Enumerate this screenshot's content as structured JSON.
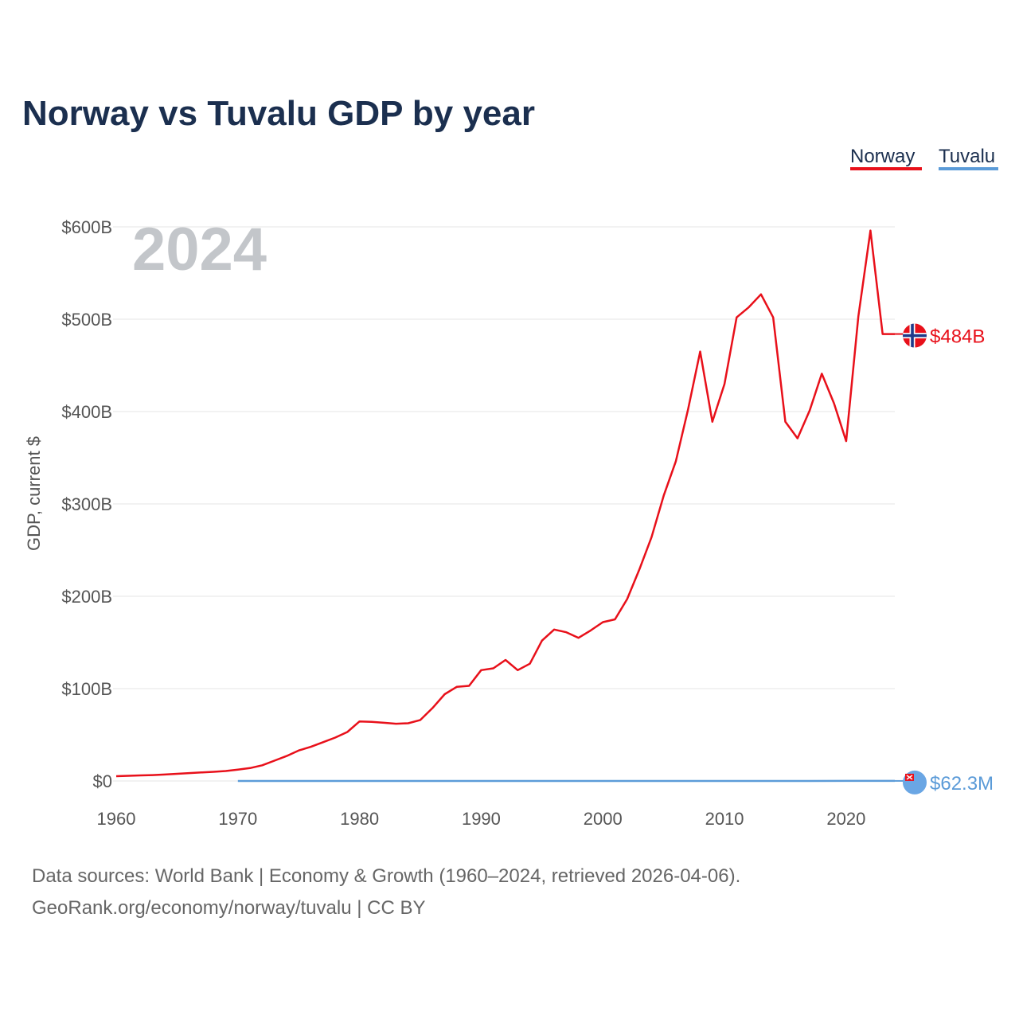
{
  "chart_data": {
    "type": "line",
    "title": "Norway vs Tuvalu GDP by year",
    "ylabel": "GDP, current $",
    "xlabel": "",
    "xlim": [
      1960,
      2024
    ],
    "ylim": [
      0,
      600000000000
    ],
    "current_year": "2024",
    "x_ticks": [
      1960,
      1970,
      1980,
      1990,
      2000,
      2010,
      2020
    ],
    "y_ticks": [
      {
        "value": 0,
        "label": "$0"
      },
      {
        "value": 100000000000,
        "label": "$100B"
      },
      {
        "value": 200000000000,
        "label": "$200B"
      },
      {
        "value": 300000000000,
        "label": "$300B"
      },
      {
        "value": 400000000000,
        "label": "$400B"
      },
      {
        "value": 500000000000,
        "label": "$500B"
      },
      {
        "value": 600000000000,
        "label": "$600B"
      }
    ],
    "legend": [
      "Norway",
      "Tuvalu"
    ],
    "legend_placement": "top-right",
    "series": [
      {
        "name": "Norway",
        "color": "#e8101a",
        "end_label": "$484B",
        "flag_icon": "norway-flag-icon",
        "x": [
          1960,
          1961,
          1962,
          1963,
          1964,
          1965,
          1966,
          1967,
          1968,
          1969,
          1970,
          1971,
          1972,
          1973,
          1974,
          1975,
          1976,
          1977,
          1978,
          1979,
          1980,
          1981,
          1982,
          1983,
          1984,
          1985,
          1986,
          1987,
          1988,
          1989,
          1990,
          1991,
          1992,
          1993,
          1994,
          1995,
          1996,
          1997,
          1998,
          1999,
          2000,
          2001,
          2002,
          2003,
          2004,
          2005,
          2006,
          2007,
          2008,
          2009,
          2010,
          2011,
          2012,
          2013,
          2014,
          2015,
          2016,
          2017,
          2018,
          2019,
          2020,
          2021,
          2022,
          2023,
          2024
        ],
        "values": [
          5200000000,
          5600000000,
          6000000000,
          6400000000,
          7000000000,
          7800000000,
          8500000000,
          9200000000,
          9900000000,
          10800000000,
          12200000000,
          14000000000,
          17000000000,
          22000000000,
          27000000000,
          33000000000,
          37000000000,
          42000000000,
          47000000000,
          53000000000,
          64500000000,
          64000000000,
          63000000000,
          62000000000,
          62500000000,
          66000000000,
          79000000000,
          94000000000,
          102000000000,
          103000000000,
          120000000000,
          122000000000,
          131000000000,
          120000000000,
          127000000000,
          152000000000,
          164000000000,
          161000000000,
          155000000000,
          163000000000,
          172000000000,
          175000000000,
          197000000000,
          229000000000,
          264000000000,
          309000000000,
          346000000000,
          402000000000,
          465000000000,
          389000000000,
          430000000000,
          502000000000,
          513000000000,
          527000000000,
          502000000000,
          389000000000,
          371000000000,
          401000000000,
          441000000000,
          409000000000,
          368000000000,
          503000000000,
          596000000000,
          484000000000,
          484000000000
        ]
      },
      {
        "name": "Tuvalu",
        "color": "#5b9bd8",
        "end_label": "$62.3M",
        "flag_icon": "tuvalu-flag-icon",
        "x": [
          1970,
          1975,
          1980,
          1985,
          1990,
          1995,
          2000,
          2005,
          2010,
          2015,
          2020,
          2023,
          2024
        ],
        "values": [
          4000000,
          6000000,
          8000000,
          10000000,
          11000000,
          13000000,
          15000000,
          23000000,
          32000000,
          36000000,
          50000000,
          60000000,
          62300000
        ]
      }
    ]
  },
  "footer": {
    "source_line": "Data sources: World Bank | Economy & Growth (1960–2024, retrieved 2026-04-06).",
    "url_line": "GeoRank.org/economy/norway/tuvalu | CC BY"
  }
}
